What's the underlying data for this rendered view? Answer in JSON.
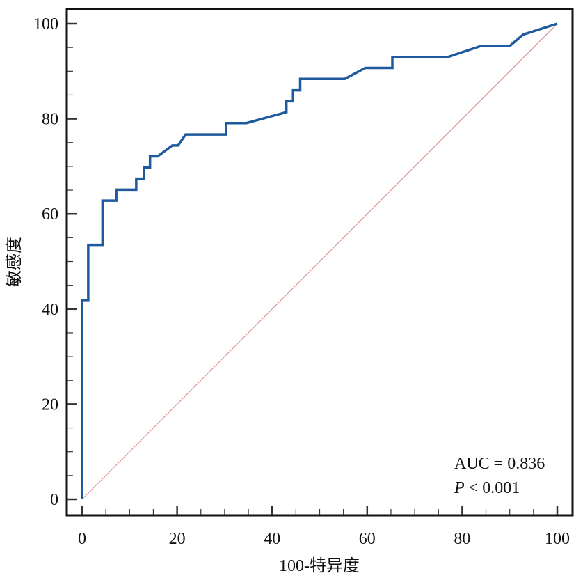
{
  "chart_data": {
    "type": "line",
    "title": "",
    "xlabel": "100-特异度",
    "ylabel": "敏感度",
    "xlim": [
      0,
      100
    ],
    "ylim": [
      0,
      100
    ],
    "xticks": [
      0,
      20,
      40,
      60,
      80,
      100
    ],
    "yticks": [
      0,
      20,
      40,
      60,
      80,
      100
    ],
    "grid": false,
    "series": [
      {
        "name": "ROC",
        "color": "#1f5a9e",
        "points": [
          [
            0,
            0
          ],
          [
            0,
            41.9
          ],
          [
            1.3,
            41.9
          ],
          [
            1.3,
            53.5
          ],
          [
            4.3,
            53.5
          ],
          [
            4.3,
            62.8
          ],
          [
            7.2,
            62.8
          ],
          [
            7.2,
            65.1
          ],
          [
            11.4,
            65.1
          ],
          [
            11.4,
            67.4
          ],
          [
            13,
            67.4
          ],
          [
            13,
            69.8
          ],
          [
            14.3,
            69.8
          ],
          [
            14.3,
            72.1
          ],
          [
            15.9,
            72.1
          ],
          [
            19,
            74.4
          ],
          [
            20.2,
            74.4
          ],
          [
            21.8,
            76.7
          ],
          [
            30.3,
            76.7
          ],
          [
            30.3,
            79.1
          ],
          [
            34.6,
            79.1
          ],
          [
            43,
            81.4
          ],
          [
            43,
            83.7
          ],
          [
            44.4,
            83.7
          ],
          [
            44.4,
            86
          ],
          [
            45.9,
            86
          ],
          [
            45.9,
            88.4
          ],
          [
            55.3,
            88.4
          ],
          [
            59.6,
            90.7
          ],
          [
            65.3,
            90.7
          ],
          [
            65.3,
            93
          ],
          [
            77,
            93
          ],
          [
            83.9,
            95.3
          ],
          [
            90,
            95.3
          ],
          [
            92.8,
            97.7
          ],
          [
            100,
            100
          ]
        ]
      },
      {
        "name": "reference",
        "color": "#d9898a",
        "points": [
          [
            0,
            0
          ],
          [
            100,
            100
          ]
        ]
      }
    ],
    "annotations": {
      "auc": "AUC = 0.836",
      "p_label": "P",
      "p_rest": " < 0.001"
    }
  }
}
